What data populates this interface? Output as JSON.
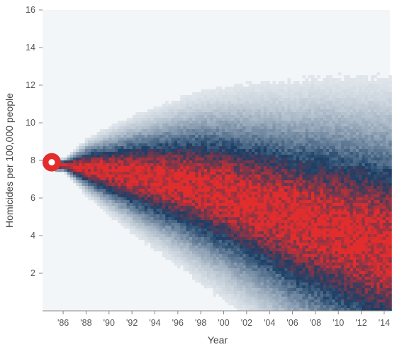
{
  "chart_data": {
    "type": "heatmap",
    "title": "",
    "xlabel": "Year",
    "ylabel": "Homicides per 100,000 people",
    "x_ticks": [
      "'86",
      "'88",
      "'90",
      "'92",
      "'94",
      "'96",
      "'98",
      "'00",
      "'02",
      "'04",
      "'06",
      "'08",
      "'10",
      "'12",
      "'14"
    ],
    "y_ticks": [
      2,
      4,
      6,
      8,
      10,
      12,
      14,
      16
    ],
    "xlim": [
      1984.2,
      2014.5
    ],
    "ylim": [
      0,
      16
    ],
    "grid": false,
    "start_point": {
      "x": 1985,
      "y": 7.9
    },
    "distribution": {
      "years": [
        1986,
        1988,
        1990,
        1992,
        1994,
        1996,
        1998,
        2000,
        2002,
        2004,
        2006,
        2008,
        2010,
        2012,
        2014
      ],
      "median": [
        7.8,
        7.7,
        7.5,
        7.3,
        7.1,
        6.9,
        6.6,
        6.3,
        5.9,
        5.5,
        5.0,
        4.7,
        4.3,
        3.9,
        3.5
      ],
      "spread": [
        0.15,
        0.6,
        0.9,
        1.2,
        1.45,
        1.7,
        1.95,
        2.15,
        2.35,
        2.55,
        2.75,
        2.95,
        3.1,
        3.25,
        3.4
      ]
    },
    "colors": {
      "low": "#f3f6f8",
      "mid": "#1a3f66",
      "high": "#e32d2d",
      "marker": "#e32d2d"
    }
  }
}
